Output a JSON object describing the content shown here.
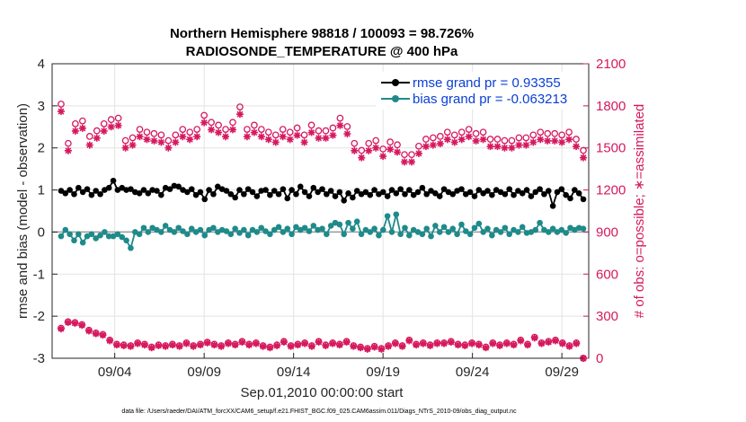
{
  "chart_data": {
    "type": "line",
    "title_line1": "Northern Hemisphere 98818 / 100093 = 98.726%",
    "title_line2": "RADIOSONDE_TEMPERATURE @ 400 hPa",
    "xlabel": "Sep.01,2010 00:00:00 start",
    "ylabel_left": "rmse and bias (model - observation)",
    "ylabel_right": "# of obs: o=possible; ∗=assimilated",
    "footnote": "data file: /Users/raeder/DAI/ATM_forcXX/CAM6_setup/f.e21.FHIST_BGC.f09_025.CAM6assim.011/Diags_NTrS_2010-09/obs_diag_output.nc",
    "xlim": [
      0.5,
      30.5
    ],
    "ylim_left": [
      -3,
      4
    ],
    "ylim_right": [
      0,
      2100
    ],
    "x_ticks": [
      4,
      9,
      14,
      19,
      24,
      29
    ],
    "x_tick_labels": [
      "09/04",
      "09/09",
      "09/14",
      "09/19",
      "09/24",
      "09/29"
    ],
    "y_left_ticks": [
      "-3",
      "-2",
      "-1",
      "0",
      "1",
      "2",
      "3",
      "4"
    ],
    "y_right_ticks": [
      "0",
      "300",
      "600",
      "900",
      "1200",
      "1500",
      "1800",
      "2100"
    ],
    "colors": {
      "rmse": "#000000",
      "bias": "#1f8a8a",
      "obs": "#d6185e",
      "legend_text": "#0a3fd6"
    },
    "legend": [
      {
        "name": "rmse",
        "label": "rmse grand pr = 0.93355"
      },
      {
        "name": "bias",
        "label": "bias grand pr = -0.063213"
      }
    ],
    "series": [
      {
        "name": "rmse",
        "axis": "left",
        "values": [
          0.98,
          0.92,
          1.0,
          0.9,
          1.05,
          0.95,
          1.02,
          0.88,
          0.98,
          0.9,
          1.0,
          1.05,
          1.22,
          1.0,
          1.05,
          1.0,
          1.02,
          0.95,
          0.92,
          1.0,
          0.92,
          1.0,
          0.98,
          0.88,
          1.05,
          1.02,
          1.1,
          1.08,
          1.0,
          0.95,
          1.02,
          0.88,
          0.95,
          0.78,
          1.0,
          0.9,
          1.08,
          1.02,
          0.98,
          0.9,
          0.82,
          1.0,
          0.9,
          1.02,
          0.95,
          0.85,
          0.98,
          1.0,
          0.88,
          0.98,
          0.9,
          1.02,
          0.8,
          1.0,
          0.9,
          1.08,
          0.95,
          0.85,
          1.05,
          0.95,
          1.02,
          0.9,
          0.98,
          0.85,
          0.95,
          0.75,
          0.92,
          0.82,
          0.98,
          0.9,
          0.95,
          0.88,
          1.0,
          0.9,
          0.95,
          0.85,
          1.0,
          0.92,
          1.02,
          0.9,
          1.0,
          0.88,
          0.95,
          1.05,
          0.9,
          0.98,
          0.92,
          0.85,
          1.02,
          0.95,
          0.9,
          0.98,
          1.02,
          0.9,
          0.95,
          0.85,
          1.0,
          0.92,
          0.98,
          0.88,
          1.0,
          0.95,
          0.9,
          1.02,
          0.88,
          0.98,
          0.92,
          1.0,
          0.85,
          0.95,
          1.02,
          0.9,
          0.98,
          0.62,
          0.95,
          1.02,
          0.88,
          0.8,
          1.0,
          0.92,
          0.78
        ]
      },
      {
        "name": "bias",
        "axis": "left",
        "values": [
          -0.1,
          0.05,
          -0.05,
          -0.2,
          -0.05,
          -0.25,
          -0.1,
          -0.05,
          -0.15,
          -0.08,
          0.0,
          -0.1,
          -0.1,
          -0.05,
          -0.12,
          -0.2,
          -0.38,
          0.0,
          -0.05,
          0.1,
          0.0,
          0.1,
          0.05,
          0.0,
          0.15,
          0.05,
          0.0,
          0.1,
          0.02,
          -0.05,
          0.08,
          0.0,
          0.05,
          -0.08,
          0.05,
          0.1,
          0.0,
          0.05,
          0.02,
          -0.05,
          0.08,
          -0.02,
          0.05,
          -0.08,
          0.05,
          0.0,
          0.1,
          0.02,
          -0.05,
          0.05,
          0.12,
          0.0,
          0.08,
          -0.05,
          0.12,
          0.05,
          0.1,
          0.02,
          0.15,
          0.05,
          0.08,
          -0.05,
          0.15,
          0.22,
          0.18,
          -0.05,
          0.22,
          0.08,
          0.25,
          -0.05,
          0.05,
          0.0,
          0.08,
          -0.08,
          0.05,
          0.38,
          0.0,
          0.42,
          -0.05,
          0.1,
          -0.08,
          0.05,
          0.0,
          -0.05,
          0.08,
          -0.1,
          0.15,
          0.0,
          0.12,
          0.0,
          0.08,
          -0.05,
          0.18,
          0.02,
          -0.05,
          0.1,
          0.2,
          0.0,
          0.08,
          -0.08,
          0.05,
          0.0,
          0.1,
          -0.05,
          0.05,
          0.0,
          0.12,
          -0.02,
          0.0,
          0.05,
          0.22,
          0.05,
          0.0,
          0.08,
          0.0,
          0.05,
          -0.02,
          0.1,
          0.05,
          0.1,
          0.08
        ]
      },
      {
        "name": "possible",
        "axis": "right",
        "marker": "o",
        "values": [
          1780,
          1500,
          1640,
          1660,
          1550,
          1590,
          1640,
          1670,
          1680,
          1520,
          1540,
          1600,
          1580,
          1570,
          1560,
          1520,
          1560,
          1600,
          1580,
          1600,
          1700,
          1650,
          1630,
          1600,
          1650,
          1760,
          1600,
          1630,
          1600,
          1580,
          1560,
          1600,
          1580,
          1610,
          1560,
          1630,
          1590,
          1590,
          1610,
          1680,
          1620,
          1500,
          1450,
          1500,
          1520,
          1460,
          1510,
          1490,
          1420,
          1420,
          1480,
          1530,
          1540,
          1550,
          1580,
          1560,
          1580,
          1600,
          1570,
          1580,
          1530,
          1530,
          1520,
          1520,
          1540,
          1540,
          1560,
          1580,
          1570,
          1570,
          1560,
          1580,
          1530,
          1450
        ]
      },
      {
        "name": "assimilated",
        "axis": "right",
        "marker": "*",
        "values": [
          1760,
          1480,
          1620,
          1640,
          1520,
          1570,
          1620,
          1650,
          1660,
          1500,
          1520,
          1580,
          1560,
          1550,
          1540,
          1500,
          1540,
          1580,
          1560,
          1580,
          1680,
          1630,
          1610,
          1580,
          1630,
          1740,
          1580,
          1610,
          1580,
          1560,
          1540,
          1580,
          1560,
          1590,
          1540,
          1610,
          1570,
          1570,
          1590,
          1660,
          1600,
          1480,
          1430,
          1480,
          1500,
          1440,
          1490,
          1470,
          1400,
          1400,
          1460,
          1510,
          1520,
          1530,
          1560,
          1540,
          1560,
          1580,
          1550,
          1560,
          1510,
          1510,
          1500,
          1500,
          1520,
          1520,
          1540,
          1560,
          1550,
          1550,
          1540,
          1560,
          1510,
          1430
        ]
      },
      {
        "name": "possible_low",
        "axis": "right",
        "marker": "o",
        "values": [
          215,
          260,
          255,
          240,
          200,
          180,
          170,
          130,
          100,
          95,
          90,
          110,
          100,
          80,
          95,
          90,
          100,
          90,
          110,
          90,
          100,
          115,
          100,
          90,
          110,
          100,
          120,
          100,
          110,
          90,
          80,
          95,
          120,
          90,
          100,
          110,
          90,
          120,
          95,
          110,
          100,
          120,
          90,
          80,
          70,
          85,
          70,
          90,
          110,
          90,
          130,
          100,
          110,
          95,
          110,
          110,
          120,
          100,
          95,
          110,
          100,
          80,
          110,
          95,
          110,
          100,
          130,
          100,
          150,
          110,
          120,
          130,
          110,
          90,
          110,
          0
        ]
      },
      {
        "name": "assimilated_low",
        "axis": "right",
        "marker": "*",
        "values": [
          210,
          255,
          250,
          235,
          195,
          175,
          165,
          125,
          95,
          90,
          85,
          105,
          95,
          75,
          90,
          85,
          95,
          85,
          105,
          85,
          95,
          110,
          95,
          85,
          105,
          95,
          115,
          95,
          105,
          85,
          75,
          90,
          115,
          85,
          95,
          105,
          85,
          115,
          90,
          105,
          95,
          115,
          85,
          75,
          65,
          80,
          65,
          85,
          105,
          85,
          125,
          95,
          105,
          90,
          105,
          105,
          115,
          95,
          90,
          105,
          95,
          75,
          105,
          90,
          105,
          95,
          125,
          95,
          145,
          105,
          115,
          125,
          105,
          85,
          105,
          0
        ]
      }
    ]
  }
}
